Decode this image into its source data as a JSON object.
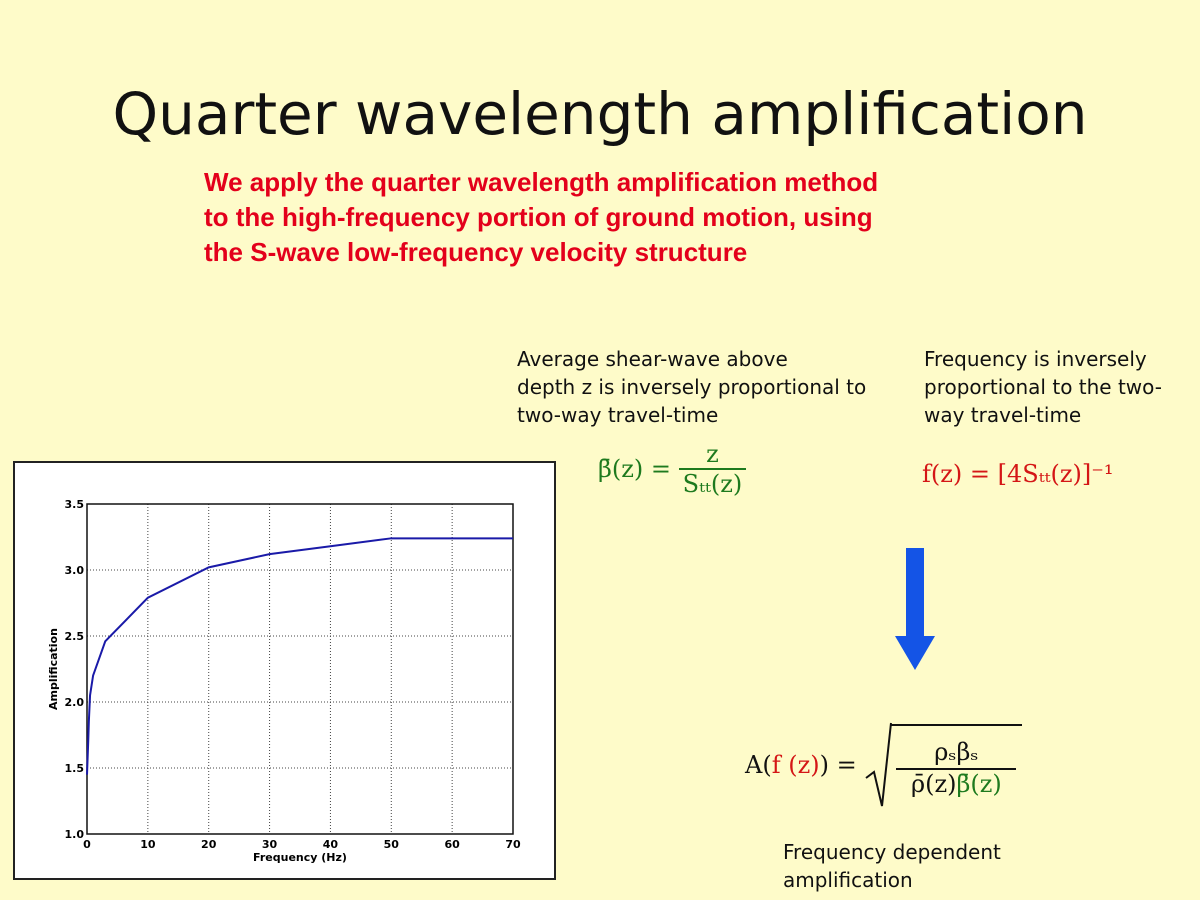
{
  "slide": {
    "title": "Quarter wavelength amplification",
    "intro_lines": [
      "We apply the quarter wavelength amplification method",
      "to the high-frequency portion of ground motion, using",
      "the S-wave low-frequency velocity structure"
    ],
    "note_left": [
      "Average shear-wave above",
      "depth z is inversely proportional to",
      "two-way travel-time"
    ],
    "note_right": [
      "Frequency is inversely",
      "proportional to the two-",
      "way travel-time"
    ],
    "eq_beta": {
      "lhs": "β̄(z) =",
      "num": "z",
      "den": "Sₜₜ(z)"
    },
    "eq_freq": "f(z) = [4Sₜₜ(z)]⁻¹",
    "eq_amp": {
      "lhs_a": "A(",
      "lhs_f": "f (z)",
      "lhs_b": ") =",
      "num": "ρₛβₛ",
      "den_a": "ρ̄(z)",
      "den_b": "β̄(z)"
    },
    "caption": [
      "Frequency dependent",
      "amplification"
    ],
    "colors": {
      "background": "#fefbc9",
      "red": "#e3001b",
      "green": "#1e7a1e",
      "arrow": "#1454e6",
      "line": "#1a1aa8"
    }
  },
  "chart_data": {
    "type": "line",
    "title": "",
    "xlabel": "Frequency (Hz)",
    "ylabel": "Amplification",
    "xlim": [
      0,
      70
    ],
    "ylim": [
      1.0,
      3.5
    ],
    "xticks": [
      0,
      10,
      20,
      30,
      40,
      50,
      60,
      70
    ],
    "yticks": [
      "1.0",
      "1.5",
      "2.0",
      "2.5",
      "3.0",
      "3.5"
    ],
    "grid": true,
    "series": [
      {
        "name": "amplification",
        "x": [
          0,
          0.2,
          0.3,
          0.5,
          1,
          3,
          10,
          20,
          30,
          40,
          50,
          70
        ],
        "y": [
          1.45,
          1.7,
          1.85,
          2.05,
          2.2,
          2.46,
          2.79,
          3.02,
          3.12,
          3.18,
          3.24,
          3.24
        ]
      }
    ]
  }
}
